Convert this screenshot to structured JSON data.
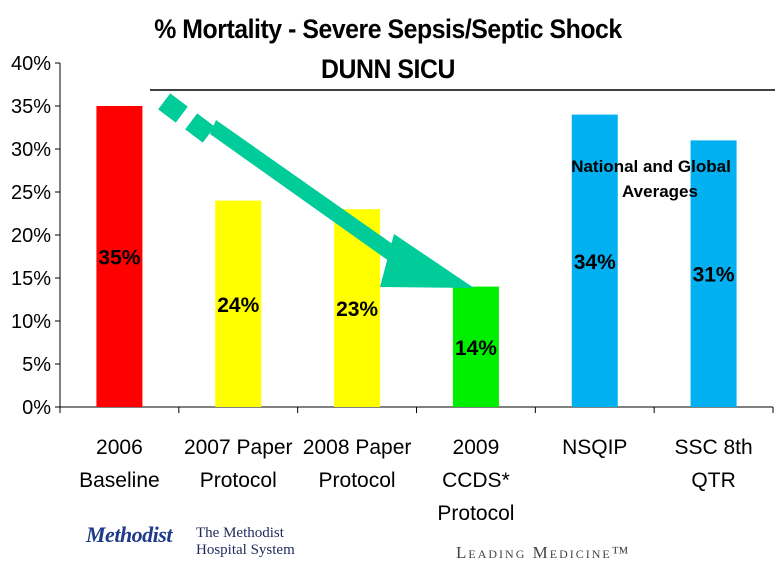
{
  "header": {
    "title": "% Mortality - Severe Sepsis/Septic Shock",
    "subtitle": "DUNN SICU"
  },
  "annotation": {
    "line1": "National and Global",
    "line2": "Averages"
  },
  "footer": {
    "logo_mark": "Methodist",
    "logo_line1": "The Methodist",
    "logo_line2": "Hospital System",
    "tagline": "Leading Medicine™"
  },
  "chart_data": {
    "type": "bar",
    "title": "% Mortality - Severe Sepsis/Septic Shock",
    "subtitle": "DUNN SICU",
    "categories": [
      [
        "2006",
        "Baseline"
      ],
      [
        "2007 Paper",
        "Protocol"
      ],
      [
        "2008 Paper",
        "Protocol"
      ],
      [
        "2009",
        "CCDS*",
        "Protocol"
      ],
      [
        "NSQIP"
      ],
      [
        "SSC 8th",
        "QTR"
      ]
    ],
    "values": [
      35,
      24,
      23,
      14,
      34,
      31
    ],
    "data_labels": [
      "35%",
      "24%",
      "23%",
      "14%",
      "34%",
      "31%"
    ],
    "bar_colors": [
      "#ff0000",
      "#ffff00",
      "#ffff00",
      "#00ee00",
      "#00b0f0",
      "#00b0f0"
    ],
    "arrow_color": "#00cc99",
    "yticks": [
      "0%",
      "5%",
      "10%",
      "15%",
      "20%",
      "25%",
      "30%",
      "35%",
      "40%"
    ],
    "ylim": [
      0,
      40
    ],
    "grid": false,
    "legend": "none"
  }
}
